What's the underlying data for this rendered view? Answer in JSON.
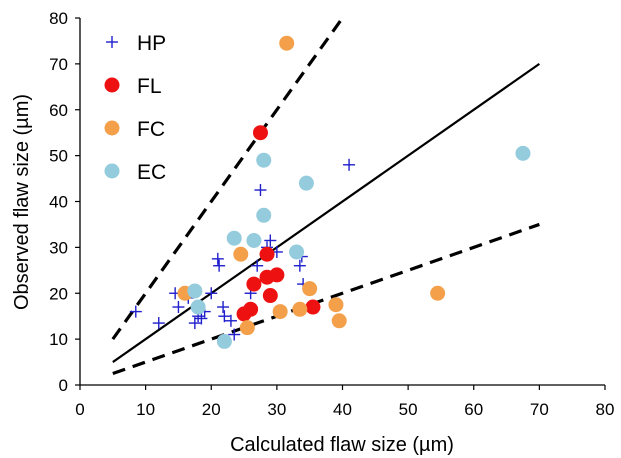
{
  "chart_data": {
    "type": "scatter",
    "xlabel": "Calculated flaw size (µm)",
    "ylabel": "Observed flaw size (µm)",
    "xlim": [
      0,
      80
    ],
    "ylim": [
      0,
      80
    ],
    "xticks": [
      "0",
      "10",
      "20",
      "30",
      "40",
      "50",
      "60",
      "70",
      "80"
    ],
    "yticks": [
      "0",
      "10",
      "20",
      "30",
      "40",
      "50",
      "60",
      "70",
      "80"
    ],
    "grid": false,
    "legend_position": "top-left",
    "series": [
      {
        "name": "HP",
        "marker": "plus",
        "color": "#1f1fcc",
        "points": [
          [
            8.5,
            16
          ],
          [
            12,
            13.5
          ],
          [
            14.5,
            20
          ],
          [
            15,
            17
          ],
          [
            16.5,
            19
          ],
          [
            17.5,
            13.5
          ],
          [
            18,
            15
          ],
          [
            18.5,
            14.5
          ],
          [
            19,
            16
          ],
          [
            20,
            20
          ],
          [
            21,
            27.5
          ],
          [
            21.2,
            26
          ],
          [
            21.8,
            17
          ],
          [
            22,
            15
          ],
          [
            23,
            14
          ],
          [
            23.5,
            11
          ],
          [
            26,
            20
          ],
          [
            27,
            26
          ],
          [
            27.5,
            42.5
          ],
          [
            28.5,
            30
          ],
          [
            29,
            31.5
          ],
          [
            30,
            29
          ],
          [
            33.5,
            26
          ],
          [
            33.8,
            28
          ],
          [
            34,
            22
          ],
          [
            41,
            48
          ]
        ]
      },
      {
        "name": "FL",
        "marker": "circle",
        "color": "#ee1111",
        "points": [
          [
            25,
            15.5
          ],
          [
            26,
            16.5
          ],
          [
            26.5,
            22
          ],
          [
            27.5,
            55
          ],
          [
            28.5,
            23.5
          ],
          [
            28.5,
            28.5
          ],
          [
            29,
            19.5
          ],
          [
            30,
            24
          ],
          [
            35.5,
            17
          ]
        ]
      },
      {
        "name": "FC",
        "marker": "circle",
        "color": "#f4a04a",
        "points": [
          [
            16,
            20
          ],
          [
            24.5,
            28.5
          ],
          [
            25.5,
            12.5
          ],
          [
            30.5,
            16
          ],
          [
            31.5,
            74.5
          ],
          [
            33.5,
            16.5
          ],
          [
            35,
            21
          ],
          [
            39,
            17.5
          ],
          [
            39.5,
            14
          ],
          [
            54.5,
            20
          ]
        ]
      },
      {
        "name": "EC",
        "marker": "circle",
        "color": "#94ccdd",
        "points": [
          [
            17.5,
            20.5
          ],
          [
            18,
            17
          ],
          [
            22,
            9.5
          ],
          [
            23.5,
            32
          ],
          [
            26.5,
            31.5
          ],
          [
            28,
            49
          ],
          [
            28,
            37
          ],
          [
            33,
            29
          ],
          [
            34.5,
            44
          ],
          [
            67.5,
            50.5
          ]
        ]
      }
    ],
    "reference_lines": [
      {
        "style": "solid",
        "points": [
          [
            5,
            5
          ],
          [
            70,
            70
          ]
        ]
      },
      {
        "style": "dashed",
        "points": [
          [
            5,
            10
          ],
          [
            40,
            80
          ]
        ]
      },
      {
        "style": "dashed",
        "points": [
          [
            5,
            2.5
          ],
          [
            70,
            35
          ]
        ]
      }
    ]
  }
}
